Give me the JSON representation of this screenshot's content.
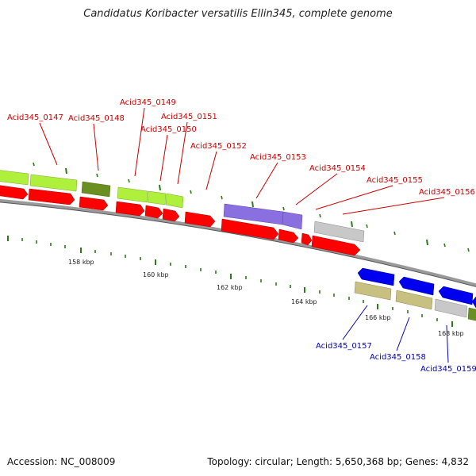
{
  "title": "Candidatus Koribacter versatilis Ellin345, complete genome",
  "footer": {
    "accession": "Accession: NC_008009",
    "summary": "Topology: circular; Length: 5,650,368 bp; Genes: 4,832"
  },
  "colors": {
    "backbone": "#9a9a9a",
    "tick": "#2c7a1a",
    "label_forward": "#cc0000",
    "label_reverse": "#0000bb",
    "cds": "#ff0000",
    "gene_lightgreen": "#aef03c",
    "gene_olive": "#6b8e23",
    "gene_purple": "#8a6fe0",
    "gene_gray": "#c8c8c8",
    "gene_blue": "#0000ee",
    "gene_khaki": "#c8c080"
  },
  "scale_labels": [
    "158 kbp",
    "160 kbp",
    "162 kbp",
    "164 kbp",
    "166 kbp",
    "168 kbp"
  ],
  "gene_labels": [
    {
      "text": "Acid345_0147",
      "strand": "forward"
    },
    {
      "text": "Acid345_0148",
      "strand": "forward"
    },
    {
      "text": "Acid345_0149",
      "strand": "forward"
    },
    {
      "text": "Acid345_0150",
      "strand": "forward"
    },
    {
      "text": "Acid345_0151",
      "strand": "forward"
    },
    {
      "text": "Acid345_0152",
      "strand": "forward"
    },
    {
      "text": "Acid345_0153",
      "strand": "forward"
    },
    {
      "text": "Acid345_0154",
      "strand": "forward"
    },
    {
      "text": "Acid345_0155",
      "strand": "forward"
    },
    {
      "text": "Acid345_0156",
      "strand": "forward"
    },
    {
      "text": "Acid345_0157",
      "strand": "reverse"
    },
    {
      "text": "Acid345_0158",
      "strand": "reverse"
    },
    {
      "text": "Acid345_0159",
      "strand": "reverse"
    }
  ]
}
